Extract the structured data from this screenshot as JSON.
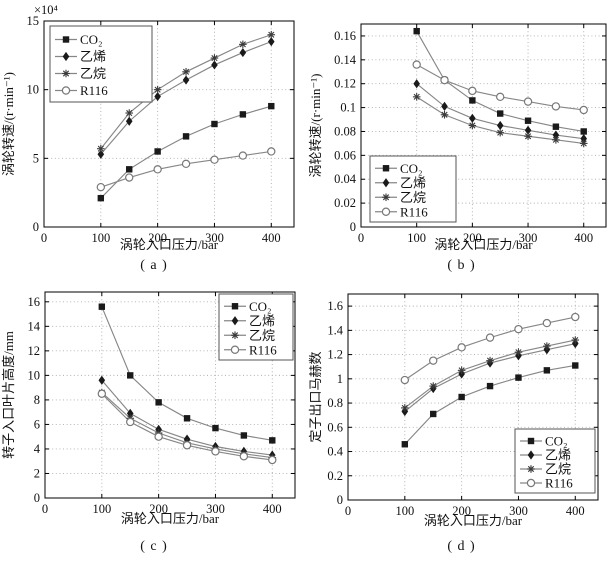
{
  "figure": {
    "background": "#ffffff",
    "line_color": "#878787",
    "grid_color": "#adadad",
    "axis_color": "#000000",
    "marker_color": "#1a1a1a",
    "open_marker_color": "#787878"
  },
  "chart_data": [
    {
      "type": "line",
      "panel": "a",
      "caption": "( a )",
      "title": "",
      "xlabel": "涡轮入口压力/bar",
      "ylabel": "涡轮转速/(r·min⁻¹)",
      "scale_label": "×10⁴",
      "x": [
        100,
        150,
        200,
        250,
        300,
        350,
        400
      ],
      "xlim": [
        0,
        440
      ],
      "ylim": [
        0,
        15
      ],
      "xticks": [
        0,
        100,
        200,
        300,
        400
      ],
      "xtick_labels": [
        "0",
        "100",
        "200",
        "300",
        "400"
      ],
      "yticks": [
        0,
        5,
        10,
        15
      ],
      "ytick_labels": [
        "0",
        "5",
        "10",
        "15"
      ],
      "grid": true,
      "legend_pos": "top-left",
      "series": [
        {
          "name": "CO₂",
          "marker": "square",
          "values": [
            2.1,
            4.2,
            5.5,
            6.6,
            7.5,
            8.2,
            8.8
          ]
        },
        {
          "name": "乙烯",
          "marker": "diamond",
          "values": [
            5.3,
            7.7,
            9.5,
            10.7,
            11.8,
            12.7,
            13.5
          ]
        },
        {
          "name": "乙烷",
          "marker": "asterisk",
          "values": [
            5.7,
            8.3,
            10.0,
            11.3,
            12.3,
            13.3,
            14.0
          ]
        },
        {
          "name": "R116",
          "marker": "circle",
          "values": [
            2.9,
            3.6,
            4.2,
            4.6,
            4.9,
            5.2,
            5.5
          ]
        }
      ]
    },
    {
      "type": "line",
      "panel": "b",
      "caption": "( b )",
      "title": "",
      "xlabel": "涡轮入口压力/bar",
      "ylabel": "涡轮转速/(r·min⁻¹)",
      "scale_label": "",
      "x": [
        100,
        150,
        200,
        250,
        300,
        350,
        400
      ],
      "xlim": [
        0,
        440
      ],
      "ylim": [
        0,
        0.17
      ],
      "xticks": [
        0,
        100,
        200,
        300,
        400
      ],
      "xtick_labels": [
        "0",
        "100",
        "200",
        "300",
        "400"
      ],
      "yticks": [
        0,
        0.02,
        0.04,
        0.06,
        0.08,
        0.1,
        0.12,
        0.14,
        0.16
      ],
      "ytick_labels": [
        "0",
        "0.02",
        "0.04",
        "0.06",
        "0.08",
        "0.1",
        "0.12",
        "0.14",
        "0.16"
      ],
      "grid": true,
      "legend_pos": "bottom-left",
      "series": [
        {
          "name": "CO₂",
          "marker": "square",
          "values": [
            0.164,
            0.123,
            0.106,
            0.095,
            0.089,
            0.084,
            0.08
          ]
        },
        {
          "name": "乙烯",
          "marker": "diamond",
          "values": [
            0.12,
            0.101,
            0.091,
            0.085,
            0.081,
            0.077,
            0.074
          ]
        },
        {
          "name": "乙烷",
          "marker": "asterisk",
          "values": [
            0.109,
            0.094,
            0.085,
            0.079,
            0.076,
            0.073,
            0.07
          ]
        },
        {
          "name": "R116",
          "marker": "circle",
          "values": [
            0.136,
            0.123,
            0.114,
            0.109,
            0.105,
            0.101,
            0.098
          ]
        }
      ]
    },
    {
      "type": "line",
      "panel": "c",
      "caption": "( c )",
      "title": "",
      "xlabel": "涡轮入口压力/bar",
      "ylabel": "转子入口叶片高度/mm",
      "scale_label": "",
      "x": [
        100,
        150,
        200,
        250,
        300,
        350,
        400
      ],
      "xlim": [
        0,
        440
      ],
      "ylim": [
        0,
        16.8
      ],
      "xticks": [
        0,
        100,
        200,
        300,
        400
      ],
      "xtick_labels": [
        "0",
        "100",
        "200",
        "300",
        "400"
      ],
      "yticks": [
        0,
        2,
        4,
        6,
        8,
        10,
        12,
        14,
        16
      ],
      "ytick_labels": [
        "0",
        "2",
        "4",
        "6",
        "8",
        "10",
        "12",
        "14",
        "16"
      ],
      "grid": true,
      "legend_pos": "top-right",
      "series": [
        {
          "name": "CO₂",
          "marker": "square",
          "values": [
            15.6,
            10.0,
            7.8,
            6.5,
            5.7,
            5.1,
            4.7
          ]
        },
        {
          "name": "乙烯",
          "marker": "diamond",
          "values": [
            9.6,
            6.9,
            5.6,
            4.8,
            4.2,
            3.8,
            3.5
          ]
        },
        {
          "name": "乙烷",
          "marker": "asterisk",
          "values": [
            8.6,
            6.5,
            5.3,
            4.5,
            4.0,
            3.6,
            3.3
          ]
        },
        {
          "name": "R116",
          "marker": "circle",
          "values": [
            8.5,
            6.2,
            5.0,
            4.3,
            3.8,
            3.4,
            3.1
          ]
        }
      ]
    },
    {
      "type": "line",
      "panel": "d",
      "caption": "( d )",
      "title": "",
      "xlabel": "涡轮入口压力/bar",
      "ylabel": "定子出口马赫数",
      "scale_label": "",
      "x": [
        100,
        150,
        200,
        250,
        300,
        350,
        400
      ],
      "xlim": [
        0,
        440
      ],
      "ylim": [
        0,
        1.7
      ],
      "xticks": [
        0,
        100,
        200,
        300,
        400
      ],
      "xtick_labels": [
        "0",
        "100",
        "200",
        "300",
        "400"
      ],
      "yticks": [
        0,
        0.2,
        0.4,
        0.6,
        0.8,
        1,
        1.2,
        1.4,
        1.6
      ],
      "ytick_labels": [
        "0",
        "0.2",
        "0.4",
        "0.6",
        "0.8",
        "1",
        "1.2",
        "1.4",
        "1.6"
      ],
      "grid": true,
      "legend_pos": "bottom-right",
      "series": [
        {
          "name": "CO₂",
          "marker": "square",
          "values": [
            0.46,
            0.71,
            0.85,
            0.94,
            1.01,
            1.07,
            1.11
          ]
        },
        {
          "name": "乙烯",
          "marker": "diamond",
          "values": [
            0.73,
            0.92,
            1.04,
            1.13,
            1.19,
            1.24,
            1.29
          ]
        },
        {
          "name": "乙烷",
          "marker": "asterisk",
          "values": [
            0.76,
            0.94,
            1.07,
            1.15,
            1.22,
            1.27,
            1.32
          ]
        },
        {
          "name": "R116",
          "marker": "circle",
          "values": [
            0.99,
            1.15,
            1.26,
            1.34,
            1.41,
            1.46,
            1.51
          ]
        }
      ]
    }
  ]
}
